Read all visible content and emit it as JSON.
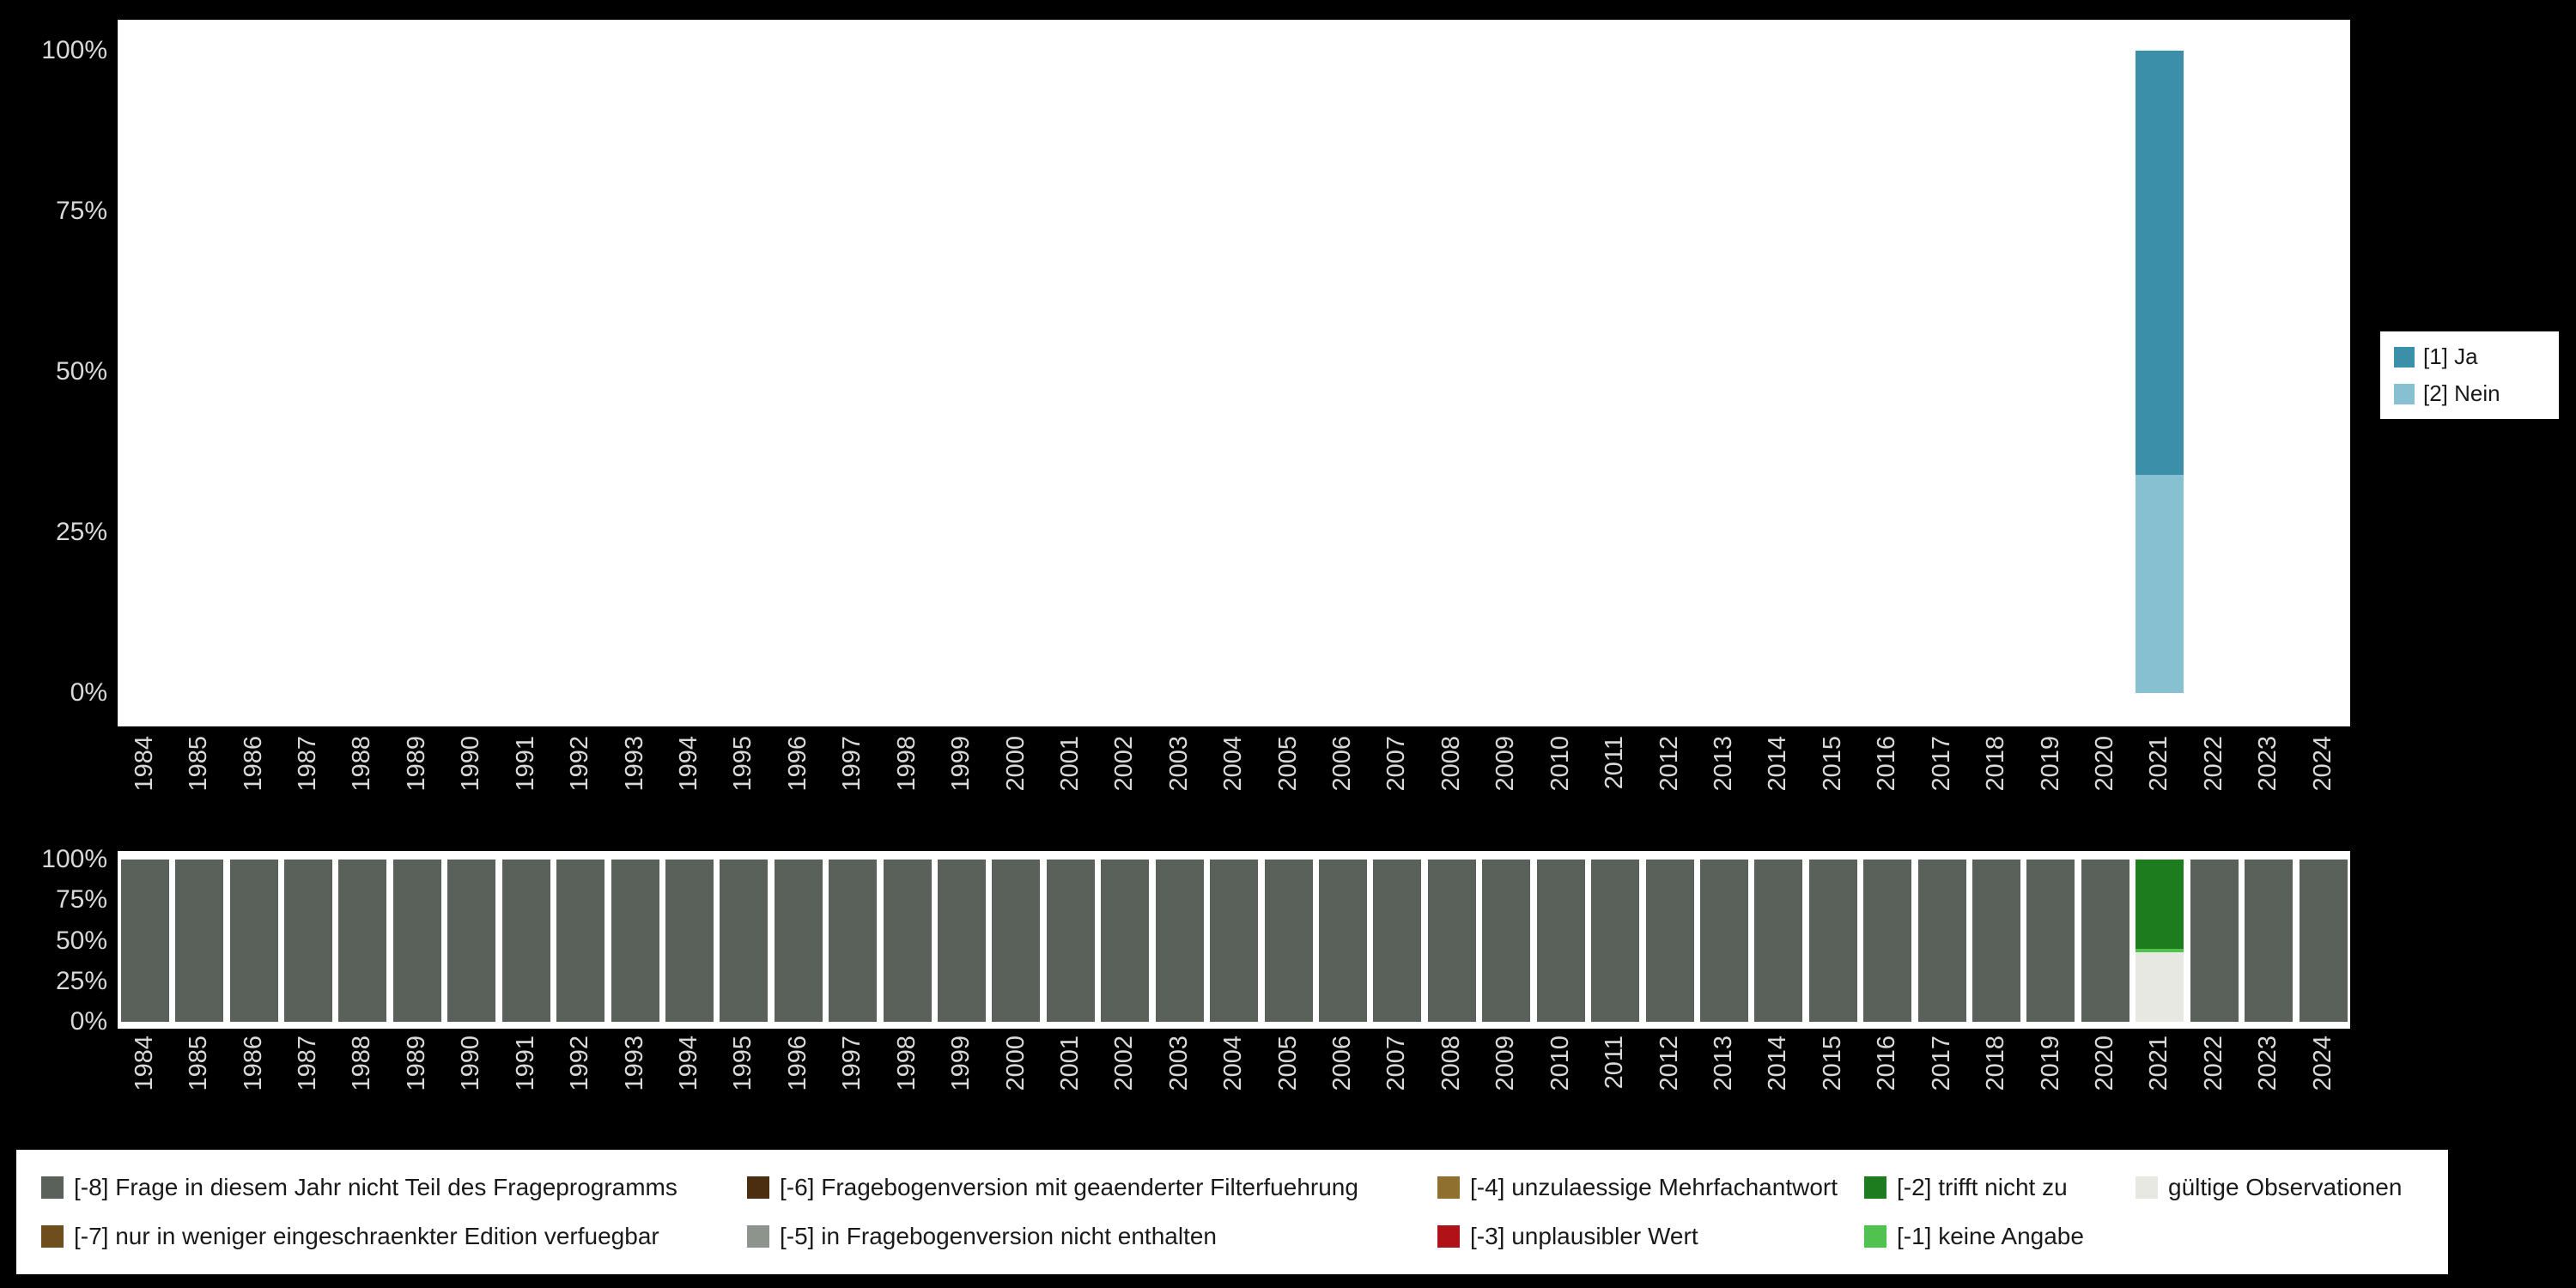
{
  "chart_data": [
    {
      "id": "values",
      "type": "bar",
      "stacked": true,
      "ylim": [
        0,
        100
      ],
      "grid": false,
      "legend_position": "right",
      "yticks": [
        "100%",
        "75%",
        "50%",
        "25%",
        "0%"
      ],
      "categories": [
        "1984",
        "1985",
        "1986",
        "1987",
        "1988",
        "1989",
        "1990",
        "1991",
        "1992",
        "1993",
        "1994",
        "1995",
        "1996",
        "1997",
        "1998",
        "1999",
        "2000",
        "2001",
        "2002",
        "2003",
        "2004",
        "2005",
        "2006",
        "2007",
        "2008",
        "2009",
        "2010",
        "2011",
        "2012",
        "2013",
        "2014",
        "2015",
        "2016",
        "2017",
        "2018",
        "2019",
        "2020",
        "2021",
        "2022",
        "2023",
        "2024"
      ],
      "legend": [
        "[1] Ja",
        "[2] Nein"
      ],
      "default_bar": null,
      "bars": {
        "2021": [
          {
            "label": "[1] Ja",
            "pct": 66
          },
          {
            "label": "[2] Nein",
            "pct": 34
          }
        ]
      }
    },
    {
      "id": "missings",
      "type": "bar",
      "stacked": true,
      "ylim": [
        0,
        100
      ],
      "grid": false,
      "legend_position": "bottom",
      "yticks": [
        "100%",
        "75%",
        "50%",
        "25%",
        "0%"
      ],
      "categories": [
        "1984",
        "1985",
        "1986",
        "1987",
        "1988",
        "1989",
        "1990",
        "1991",
        "1992",
        "1993",
        "1994",
        "1995",
        "1996",
        "1997",
        "1998",
        "1999",
        "2000",
        "2001",
        "2002",
        "2003",
        "2004",
        "2005",
        "2006",
        "2007",
        "2008",
        "2009",
        "2010",
        "2011",
        "2012",
        "2013",
        "2014",
        "2015",
        "2016",
        "2017",
        "2018",
        "2019",
        "2020",
        "2021",
        "2022",
        "2023",
        "2024"
      ],
      "legend": [
        "[-8] Frage in diesem Jahr nicht Teil des Frageprogramms",
        "[-6] Fragebogenversion mit geaenderter Filterfuehrung",
        "[-4] unzulaessige Mehrfachantwort",
        "[-2] trifft nicht zu",
        "gültige Observationen",
        "[-7] nur in weniger eingeschraenkter Edition verfuegbar",
        "[-5] in Fragebogenversion nicht enthalten",
        "[-3] unplausibler Wert",
        "[-1] keine Angabe"
      ],
      "default_bar": [
        {
          "label": "[-8] Frage in diesem Jahr nicht Teil des Frageprogramms",
          "pct": 100
        }
      ],
      "bars": {
        "2021": [
          {
            "label": "[-2] trifft nicht zu",
            "pct": 55
          },
          {
            "label": "[-1] keine Angabe",
            "pct": 2
          },
          {
            "label": "gültige Observationen",
            "pct": 43
          }
        ]
      }
    }
  ],
  "colors": {
    "[1] Ja": "#3c8fa9",
    "[2] Nein": "#86c0d1",
    "[-8] Frage in diesem Jahr nicht Teil des Frageprogramms": "#59615a",
    "[-7] nur in weniger eingeschraenkter Edition verfuegbar": "#6f4e1d",
    "[-6] Fragebogenversion mit geaenderter Filterfuehrung": "#4b2e10",
    "[-5] in Fragebogenversion nicht enthalten": "#8d948d",
    "[-4] unzulaessige Mehrfachantwort": "#90702e",
    "[-3] unplausibler Wert": "#b11217",
    "[-2] trifft nicht zu": "#1d7d1e",
    "[-1] keine Angabe": "#50c24e",
    "gültige Observationen": "#e8e8e3",
    "background": "#000000",
    "plot_background": "#ffffff",
    "axis_text": "#d9d9d9"
  }
}
